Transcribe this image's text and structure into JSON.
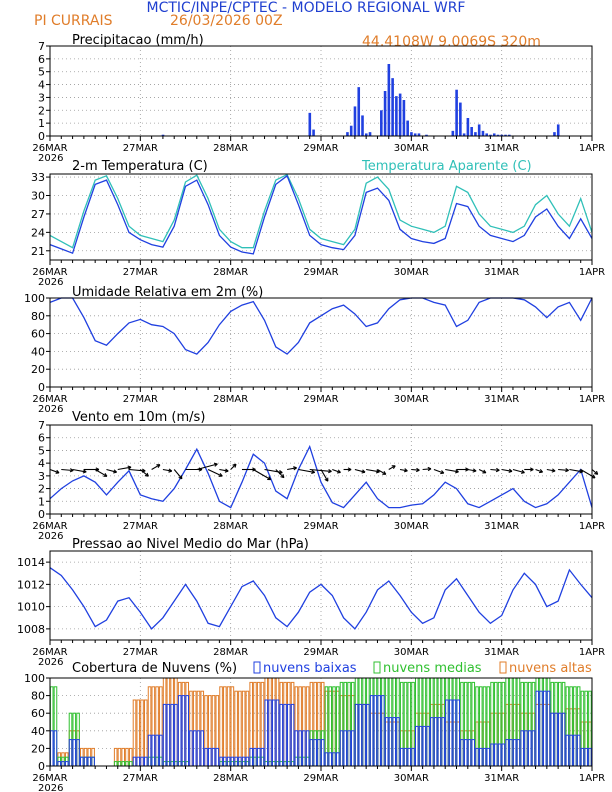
{
  "header": {
    "title": "MCTIC/INPE/CPTEC - MODELO REGIONAL WRF",
    "location": "PI CURRAIS",
    "run": "26/03/2026 00Z",
    "coords": "44.4108W 9.0069S 320m"
  },
  "x_axis": {
    "day_labels": [
      "26MAR",
      "27MAR",
      "28MAR",
      "29MAR",
      "30MAR",
      "31MAR",
      "1APR"
    ],
    "year_label": "2026",
    "hours_total": 144
  },
  "colors": {
    "title": "#2040d0",
    "orange": "#e07d2a",
    "blue": "#2040e0",
    "cyan": "#30c0b8",
    "green": "#30c030",
    "axis": "#000000"
  },
  "chart_data": [
    {
      "id": "precip",
      "type": "bar",
      "title": "Precipitacao (mm/h)",
      "ylim": [
        0,
        7
      ],
      "yticks": [
        0,
        1,
        2,
        3,
        4,
        5,
        6,
        7
      ],
      "series": [
        {
          "name": "Precipitacao",
          "x": [
            30,
            69,
            70,
            79,
            80,
            81,
            82,
            83,
            84,
            85,
            88,
            89,
            90,
            91,
            92,
            93,
            94,
            95,
            96,
            97,
            98,
            100,
            107,
            108,
            109,
            110,
            111,
            112,
            113,
            114,
            115,
            116,
            117,
            118,
            119,
            120,
            121,
            122,
            134,
            135
          ],
          "values": [
            0.1,
            1.8,
            0.5,
            0.3,
            0.8,
            2.3,
            3.8,
            1.6,
            0.2,
            0.3,
            2.0,
            3.5,
            5.6,
            4.5,
            3.1,
            3.3,
            2.8,
            1.2,
            0.3,
            0.2,
            0.2,
            0.1,
            0.4,
            3.6,
            2.6,
            0.2,
            1.4,
            0.7,
            0.3,
            0.9,
            0.4,
            0.2,
            0.1,
            0.2,
            0.1,
            0.1,
            0.1,
            0.1,
            0.3,
            0.9
          ]
        }
      ]
    },
    {
      "id": "temp",
      "type": "line",
      "title": "2-m Temperatura (C)",
      "legend": "Temperatura Aparente (C)",
      "ylim": [
        19.5,
        33.5
      ],
      "yticks": [
        21,
        24,
        27,
        30,
        33
      ],
      "series": [
        {
          "name": "2-m Temperatura",
          "color_key": "blue",
          "x": [
            0,
            3,
            6,
            9,
            12,
            15,
            18,
            21,
            24,
            27,
            30,
            33,
            36,
            39,
            42,
            45,
            48,
            51,
            54,
            57,
            60,
            63,
            66,
            69,
            72,
            75,
            78,
            81,
            84,
            87,
            90,
            93,
            96,
            99,
            102,
            105,
            108,
            111,
            114,
            117,
            120,
            123,
            126,
            129,
            132,
            135,
            138,
            141,
            144
          ],
          "values": [
            22.0,
            21.3,
            20.6,
            26.5,
            31.8,
            32.5,
            28.5,
            24.0,
            22.8,
            22.0,
            21.6,
            25.0,
            31.5,
            32.5,
            28.5,
            23.5,
            21.6,
            20.8,
            20.5,
            26.5,
            31.8,
            33.2,
            28.5,
            23.5,
            22.0,
            21.5,
            21.2,
            23.5,
            30.5,
            31.2,
            29.2,
            24.5,
            23.0,
            22.5,
            22.2,
            23.0,
            28.7,
            28.2,
            25.0,
            23.5,
            23.0,
            22.5,
            23.5,
            26.5,
            27.8,
            25.0,
            23.0,
            26.2,
            23.0
          ]
        },
        {
          "name": "Temperatura Aparente",
          "color_key": "cyan",
          "x": [
            0,
            3,
            6,
            9,
            12,
            15,
            18,
            21,
            24,
            27,
            30,
            33,
            36,
            39,
            42,
            45,
            48,
            51,
            54,
            57,
            60,
            63,
            66,
            69,
            72,
            75,
            78,
            81,
            84,
            87,
            90,
            93,
            96,
            99,
            102,
            105,
            108,
            111,
            114,
            117,
            120,
            123,
            126,
            129,
            132,
            135,
            138,
            141,
            144
          ],
          "values": [
            23.5,
            22.5,
            21.5,
            27.5,
            32.5,
            33.2,
            29.5,
            25.0,
            23.5,
            23.0,
            22.5,
            26.0,
            32.2,
            33.3,
            29.5,
            24.5,
            22.5,
            21.5,
            21.5,
            27.5,
            32.5,
            33.4,
            29.5,
            24.5,
            23.0,
            22.5,
            22.0,
            24.5,
            32.0,
            33.0,
            31.0,
            26.0,
            25.0,
            24.5,
            24.0,
            25.0,
            31.5,
            30.5,
            27.0,
            25.0,
            24.5,
            24.0,
            25.0,
            28.5,
            30.0,
            27.0,
            25.0,
            29.5,
            24.0
          ]
        }
      ]
    },
    {
      "id": "umidade",
      "type": "line",
      "title": "Umidade Relativa em 2m (%)",
      "ylim": [
        0,
        100
      ],
      "yticks": [
        0,
        20,
        40,
        60,
        80,
        100
      ],
      "series": [
        {
          "name": "Umidade Relativa",
          "color_key": "blue",
          "x": [
            0,
            3,
            6,
            9,
            12,
            15,
            18,
            21,
            24,
            27,
            30,
            33,
            36,
            39,
            42,
            45,
            48,
            51,
            54,
            57,
            60,
            63,
            66,
            69,
            72,
            75,
            78,
            81,
            84,
            87,
            90,
            93,
            96,
            99,
            102,
            105,
            108,
            111,
            114,
            117,
            120,
            123,
            126,
            129,
            132,
            135,
            138,
            141,
            144
          ],
          "values": [
            95,
            100,
            100,
            78,
            52,
            47,
            60,
            72,
            76,
            70,
            68,
            60,
            42,
            37,
            50,
            70,
            85,
            92,
            96,
            75,
            45,
            37,
            50,
            72,
            80,
            88,
            92,
            82,
            68,
            72,
            88,
            98,
            100,
            100,
            95,
            92,
            68,
            75,
            95,
            100,
            100,
            100,
            98,
            90,
            78,
            90,
            95,
            75,
            100
          ]
        }
      ]
    },
    {
      "id": "vento",
      "type": "line",
      "title": "Vento em 10m (m/s)",
      "ylim": [
        0,
        7
      ],
      "yticks": [
        0,
        1,
        2,
        3,
        4,
        5,
        6,
        7
      ],
      "series": [
        {
          "name": "Velocidade do vento",
          "color_key": "blue",
          "x": [
            0,
            3,
            6,
            9,
            12,
            15,
            18,
            21,
            24,
            27,
            30,
            33,
            36,
            39,
            42,
            45,
            48,
            51,
            54,
            57,
            60,
            63,
            66,
            69,
            72,
            75,
            78,
            81,
            84,
            87,
            90,
            93,
            96,
            99,
            102,
            105,
            108,
            111,
            114,
            117,
            120,
            123,
            126,
            129,
            132,
            135,
            138,
            141,
            144
          ],
          "values": [
            1.2,
            2.0,
            2.6,
            3.0,
            2.5,
            1.5,
            2.5,
            3.4,
            1.5,
            1.2,
            1.0,
            2.0,
            3.5,
            5.1,
            3.2,
            1.0,
            0.5,
            2.5,
            4.7,
            4.0,
            1.8,
            1.2,
            3.5,
            5.3,
            2.5,
            0.9,
            0.5,
            1.5,
            2.5,
            1.2,
            0.5,
            0.5,
            0.7,
            0.8,
            1.5,
            2.5,
            2.0,
            0.8,
            0.5,
            1.0,
            1.5,
            2.0,
            1.0,
            0.5,
            0.8,
            1.5,
            2.5,
            3.5,
            0.5
          ]
        }
      ],
      "barbs": {
        "level": 3.5,
        "direction_deg": [
          110,
          95,
          100,
          90,
          120,
          105,
          80,
          95,
          130,
          60,
          100,
          140,
          90,
          75,
          115,
          100,
          45,
          90,
          120,
          100,
          135,
          80,
          100,
          95,
          150,
          110,
          90,
          105,
          100,
          120,
          60,
          100,
          95,
          85,
          110,
          100,
          90,
          100,
          115,
          95,
          100,
          105,
          90,
          110,
          100,
          95,
          100,
          120,
          130
        ],
        "speed": [
          1.2,
          2.0,
          2.6,
          3.0,
          2.5,
          1.5,
          2.5,
          3.4,
          1.5,
          1.2,
          1.0,
          2.0,
          3.5,
          5.1,
          3.2,
          1.0,
          0.5,
          2.5,
          4.7,
          4.0,
          1.8,
          1.2,
          3.5,
          5.3,
          2.5,
          0.9,
          0.5,
          1.5,
          2.5,
          1.2,
          0.5,
          0.5,
          0.7,
          0.8,
          1.5,
          2.5,
          2.0,
          0.8,
          0.5,
          1.0,
          1.5,
          2.0,
          1.0,
          0.5,
          0.8,
          1.5,
          2.5,
          3.5,
          0.5
        ]
      }
    },
    {
      "id": "pressao",
      "type": "line",
      "title": "Pressao ao Nivel Medio do Mar (hPa)",
      "ylim": [
        1007,
        1015
      ],
      "yticks": [
        1008,
        1010,
        1012,
        1014
      ],
      "series": [
        {
          "name": "Pressao",
          "color_key": "blue",
          "x": [
            0,
            3,
            6,
            9,
            12,
            15,
            18,
            21,
            24,
            27,
            30,
            33,
            36,
            39,
            42,
            45,
            48,
            51,
            54,
            57,
            60,
            63,
            66,
            69,
            72,
            75,
            78,
            81,
            84,
            87,
            90,
            93,
            96,
            99,
            102,
            105,
            108,
            111,
            114,
            117,
            120,
            123,
            126,
            129,
            132,
            135,
            138,
            141,
            144
          ],
          "values": [
            1013.5,
            1012.8,
            1011.5,
            1010.0,
            1008.2,
            1008.8,
            1010.5,
            1010.8,
            1009.5,
            1008.0,
            1009.0,
            1010.5,
            1012.0,
            1010.5,
            1008.5,
            1008.2,
            1010.0,
            1011.8,
            1012.3,
            1011.0,
            1009.0,
            1008.2,
            1009.5,
            1011.3,
            1012.0,
            1011.0,
            1009.0,
            1008.0,
            1009.5,
            1011.5,
            1012.3,
            1011.0,
            1009.5,
            1008.5,
            1009.0,
            1011.5,
            1012.5,
            1011.0,
            1009.5,
            1008.5,
            1009.2,
            1011.5,
            1013.0,
            1012.0,
            1010.0,
            1010.5,
            1013.3,
            1012.0,
            1010.8
          ]
        }
      ]
    },
    {
      "id": "nuvens",
      "type": "bar",
      "title": "Cobertura de Nuvens (%)",
      "legend": [
        "nuvens baixas",
        "nuvens medias",
        "nuvens altas"
      ],
      "ylim": [
        0,
        100
      ],
      "yticks": [
        0,
        20,
        40,
        60,
        80,
        100
      ],
      "segments": [
        {
          "x0": 0,
          "x1": 2,
          "altas": 0,
          "medias": 90,
          "baixas": 40
        },
        {
          "x0": 2,
          "x1": 5,
          "altas": 15,
          "medias": 10,
          "baixas": 5
        },
        {
          "x0": 5,
          "x1": 8,
          "altas": 40,
          "medias": 60,
          "baixas": 30
        },
        {
          "x0": 8,
          "x1": 12,
          "altas": 20,
          "medias": 10,
          "baixas": 10
        },
        {
          "x0": 12,
          "x1": 17,
          "altas": 0,
          "medias": 0,
          "baixas": 0
        },
        {
          "x0": 17,
          "x1": 22,
          "altas": 20,
          "medias": 5,
          "baixas": 0
        },
        {
          "x0": 22,
          "x1": 26,
          "altas": 75,
          "medias": 0,
          "baixas": 10
        },
        {
          "x0": 26,
          "x1": 30,
          "altas": 90,
          "medias": 10,
          "baixas": 35
        },
        {
          "x0": 30,
          "x1": 34,
          "altas": 100,
          "medias": 5,
          "baixas": 70
        },
        {
          "x0": 34,
          "x1": 37,
          "altas": 95,
          "medias": 5,
          "baixas": 80
        },
        {
          "x0": 37,
          "x1": 41,
          "altas": 85,
          "medias": 0,
          "baixas": 40
        },
        {
          "x0": 41,
          "x1": 45,
          "altas": 80,
          "medias": 0,
          "baixas": 20
        },
        {
          "x0": 45,
          "x1": 49,
          "altas": 90,
          "medias": 5,
          "baixas": 10
        },
        {
          "x0": 49,
          "x1": 53,
          "altas": 85,
          "medias": 5,
          "baixas": 10
        },
        {
          "x0": 53,
          "x1": 57,
          "altas": 95,
          "medias": 10,
          "baixas": 20
        },
        {
          "x0": 57,
          "x1": 61,
          "altas": 100,
          "medias": 5,
          "baixas": 75
        },
        {
          "x0": 61,
          "x1": 65,
          "altas": 95,
          "medias": 5,
          "baixas": 70
        },
        {
          "x0": 65,
          "x1": 69,
          "altas": 90,
          "medias": 10,
          "baixas": 40
        },
        {
          "x0": 69,
          "x1": 73,
          "altas": 95,
          "medias": 40,
          "baixas": 30
        },
        {
          "x0": 73,
          "x1": 77,
          "altas": 85,
          "medias": 90,
          "baixas": 15
        },
        {
          "x0": 77,
          "x1": 81,
          "altas": 80,
          "medias": 95,
          "baixas": 40
        },
        {
          "x0": 81,
          "x1": 85,
          "altas": 70,
          "medias": 100,
          "baixas": 70
        },
        {
          "x0": 85,
          "x1": 89,
          "altas": 60,
          "medias": 100,
          "baixas": 80
        },
        {
          "x0": 89,
          "x1": 93,
          "altas": 50,
          "medias": 100,
          "baixas": 55
        },
        {
          "x0": 93,
          "x1": 97,
          "altas": 40,
          "medias": 95,
          "baixas": 20
        },
        {
          "x0": 97,
          "x1": 101,
          "altas": 60,
          "medias": 100,
          "baixas": 45
        },
        {
          "x0": 101,
          "x1": 105,
          "altas": 70,
          "medias": 100,
          "baixas": 55
        },
        {
          "x0": 105,
          "x1": 109,
          "altas": 50,
          "medias": 100,
          "baixas": 75
        },
        {
          "x0": 109,
          "x1": 113,
          "altas": 40,
          "medias": 95,
          "baixas": 30
        },
        {
          "x0": 113,
          "x1": 117,
          "altas": 50,
          "medias": 90,
          "baixas": 20
        },
        {
          "x0": 117,
          "x1": 121,
          "altas": 60,
          "medias": 95,
          "baixas": 25
        },
        {
          "x0": 121,
          "x1": 125,
          "altas": 70,
          "medias": 100,
          "baixas": 30
        },
        {
          "x0": 125,
          "x1": 129,
          "altas": 60,
          "medias": 95,
          "baixas": 40
        },
        {
          "x0": 129,
          "x1": 133,
          "altas": 70,
          "medias": 100,
          "baixas": 85
        },
        {
          "x0": 133,
          "x1": 137,
          "altas": 60,
          "medias": 95,
          "baixas": 60
        },
        {
          "x0": 137,
          "x1": 141,
          "altas": 65,
          "medias": 90,
          "baixas": 35
        },
        {
          "x0": 141,
          "x1": 144,
          "altas": 50,
          "medias": 85,
          "baixas": 20
        }
      ]
    }
  ]
}
